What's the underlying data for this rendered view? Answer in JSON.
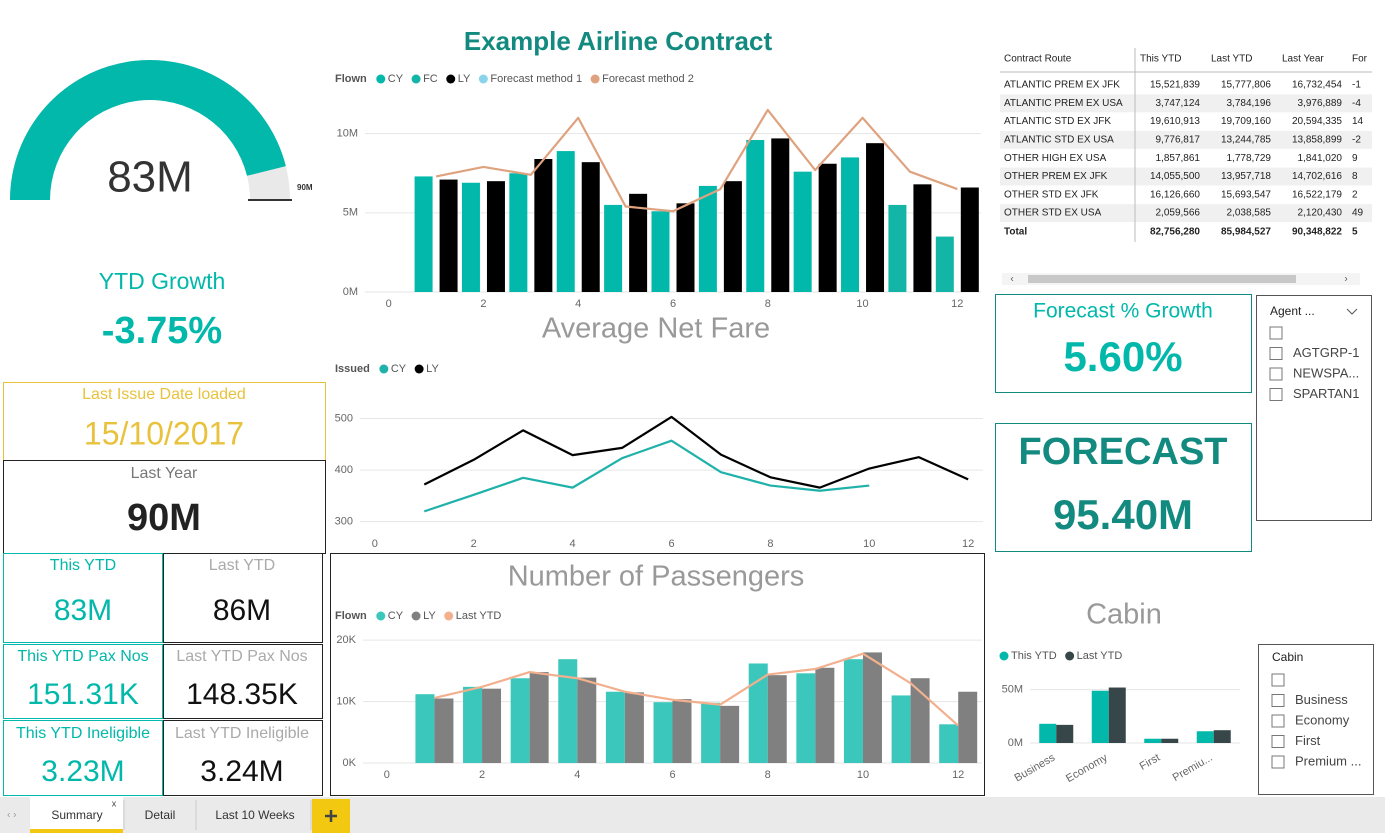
{
  "title": "Example Airline Contract",
  "gauge": {
    "value": 83,
    "label": "83M",
    "target": 90,
    "target_label": "90M",
    "range": [
      0,
      90
    ],
    "color": "#01b8aa"
  },
  "cards": [
    {
      "label": "YTD Growth",
      "value": "-3.75%"
    },
    {
      "label": "Last Issue Date loaded",
      "value": "15/10/2017"
    },
    {
      "label": "Last Year",
      "value": "90M"
    },
    {
      "label": "This YTD",
      "value": "83M"
    },
    {
      "label": "Last YTD",
      "value": "86M"
    },
    {
      "label": "This YTD Pax Nos",
      "value": "151.31K"
    },
    {
      "label": "Last YTD Pax Nos",
      "value": "148.35K"
    },
    {
      "label": "This YTD Ineligible",
      "value": "3.23M"
    },
    {
      "label": "Last YTD Ineligible",
      "value": "3.24M"
    },
    {
      "label": "Forecast % Growth",
      "value": "5.60%"
    },
    {
      "label": "FORECAST",
      "value": "95.40M"
    }
  ],
  "table": {
    "columns": [
      "Contract Route",
      "This YTD",
      "Last YTD",
      "Last Year",
      "For"
    ],
    "rows": [
      [
        "ATLANTIC PREM EX JFK",
        "15,521,839",
        "15,777,806",
        "16,732,454",
        "-1"
      ],
      [
        "ATLANTIC PREM EX USA",
        "3,747,124",
        "3,784,196",
        "3,976,889",
        "-4"
      ],
      [
        "ATLANTIC STD EX JFK",
        "19,610,913",
        "19,709,160",
        "20,594,335",
        "14"
      ],
      [
        "ATLANTIC STD EX USA",
        "9,776,817",
        "13,244,785",
        "13,858,899",
        "-2"
      ],
      [
        "OTHER HIGH EX USA",
        "1,857,861",
        "1,778,729",
        "1,841,020",
        "9"
      ],
      [
        "OTHER PREM EX JFK",
        "14,055,500",
        "13,957,718",
        "14,702,616",
        "8"
      ],
      [
        "OTHER STD EX JFK",
        "16,126,660",
        "15,693,547",
        "16,522,179",
        "2"
      ],
      [
        "OTHER STD EX USA",
        "2,059,566",
        "2,038,585",
        "2,120,430",
        "49"
      ]
    ],
    "total": [
      "Total",
      "82,756,280",
      "85,984,527",
      "90,348,822",
      "5"
    ]
  },
  "charts": [
    {
      "type": "combo",
      "legend_title": "Flown",
      "grid": true,
      "x": [
        1,
        2,
        3,
        4,
        5,
        6,
        7,
        8,
        9,
        10,
        11,
        12
      ],
      "xlim": [
        -0.5,
        12.5
      ],
      "xticks": [
        0,
        2,
        4,
        6,
        8,
        10,
        12
      ],
      "ylim": [
        0,
        12
      ],
      "yticks": [
        {
          "value": 0,
          "label": "0M"
        },
        {
          "value": 5,
          "label": "5M"
        },
        {
          "value": 10,
          "label": "10M"
        }
      ],
      "series": [
        {
          "name": "CY",
          "type": "bar",
          "color": "#01b8aa",
          "values": [
            7.3,
            6.9,
            7.5,
            8.9,
            5.5,
            5.1,
            6.7,
            9.6,
            7.6,
            8.5,
            null,
            null
          ]
        },
        {
          "name": "FC",
          "type": "bar",
          "color": "#12b5a6",
          "values": [
            null,
            null,
            null,
            null,
            null,
            null,
            null,
            null,
            null,
            null,
            5.5,
            3.5
          ]
        },
        {
          "name": "LY",
          "type": "bar",
          "color": "#000000",
          "values": [
            7.1,
            7.0,
            8.4,
            8.2,
            6.2,
            5.6,
            7.0,
            9.7,
            8.1,
            9.4,
            6.8,
            6.6
          ]
        },
        {
          "name": "Forecast method 1",
          "type": "line",
          "color": "#8ad4eb",
          "values": [
            null,
            null,
            null,
            null,
            null,
            null,
            null,
            null,
            null,
            null,
            null,
            null
          ]
        },
        {
          "name": "Forecast method 2",
          "type": "line",
          "color": "#dfa27f",
          "values": [
            7.3,
            7.9,
            7.4,
            11.0,
            5.4,
            5.1,
            6.5,
            11.5,
            7.7,
            11.0,
            7.6,
            6.5
          ]
        }
      ]
    },
    {
      "type": "line",
      "title": "Average Net Fare",
      "legend_title": "Issued",
      "grid": true,
      "x": [
        1,
        2,
        3,
        4,
        5,
        6,
        7,
        8,
        9,
        10,
        11,
        12
      ],
      "xlim": [
        -0.3,
        12.3
      ],
      "xticks": [
        0,
        2,
        4,
        6,
        8,
        10,
        12
      ],
      "ylim": [
        280,
        530
      ],
      "yticks": [
        300,
        400,
        500
      ],
      "series": [
        {
          "name": "CY",
          "type": "line",
          "color": "#20b2aa",
          "values": [
            320,
            352,
            385,
            366,
            423,
            457,
            396,
            370,
            360,
            370,
            null,
            null
          ]
        },
        {
          "name": "LY",
          "type": "line",
          "color": "#000000",
          "values": [
            372,
            420,
            477,
            429,
            443,
            503,
            430,
            386,
            366,
            403,
            425,
            382
          ]
        }
      ]
    },
    {
      "type": "combo",
      "title": "Number of Passengers",
      "legend_title": "Flown",
      "grid": true,
      "x": [
        1,
        2,
        3,
        4,
        5,
        6,
        7,
        8,
        9,
        10,
        11,
        12
      ],
      "xlim": [
        -0.5,
        12.5
      ],
      "xticks": [
        0,
        2,
        4,
        6,
        8,
        10,
        12
      ],
      "ylim": [
        0,
        21
      ],
      "yticks": [
        {
          "value": 0,
          "label": "0K"
        },
        {
          "value": 10,
          "label": "10K"
        },
        {
          "value": 20,
          "label": "20K"
        }
      ],
      "series": [
        {
          "name": "CY",
          "type": "bar",
          "color": "#3cc7bd",
          "values": [
            11.2,
            12.4,
            13.8,
            16.9,
            11.6,
            9.9,
            9.8,
            16.2,
            14.6,
            16.9,
            11.0,
            6.3
          ]
        },
        {
          "name": "LY",
          "type": "bar",
          "color": "#808080",
          "values": [
            10.5,
            12.1,
            14.8,
            13.9,
            11.5,
            10.4,
            9.3,
            14.3,
            15.5,
            18.0,
            13.8,
            11.6
          ]
        },
        {
          "name": "Last YTD",
          "type": "line",
          "color": "#f2b08e",
          "values": [
            10.6,
            12.4,
            14.8,
            13.8,
            11.6,
            10.3,
            9.5,
            14.4,
            15.3,
            17.8,
            13.0,
            6.1
          ]
        }
      ]
    },
    {
      "type": "bar",
      "title": "Cabin",
      "grid": true,
      "categories": [
        "Business",
        "Economy",
        "First",
        "Premiu..."
      ],
      "ylim": [
        0,
        60
      ],
      "yticks": [
        {
          "value": 0,
          "label": "0M"
        },
        {
          "value": 50,
          "label": "50M"
        }
      ],
      "series": [
        {
          "name": "This YTD",
          "type": "bar",
          "color": "#01b8aa",
          "values": [
            18,
            49,
            4,
            11
          ]
        },
        {
          "name": "Last YTD",
          "type": "bar",
          "color": "#374649",
          "values": [
            17,
            52,
            4,
            12
          ]
        }
      ]
    }
  ],
  "slicers": [
    {
      "title": "Agent ...",
      "items": [
        "AGTGRP-1",
        "NEWSPA...",
        "SPARTAN1"
      ]
    },
    {
      "title": "Cabin",
      "items": [
        "Business",
        "Economy",
        "First",
        "Premium ..."
      ]
    }
  ],
  "tabs": [
    "Summary",
    "Detail",
    "Last 10 Weeks"
  ]
}
